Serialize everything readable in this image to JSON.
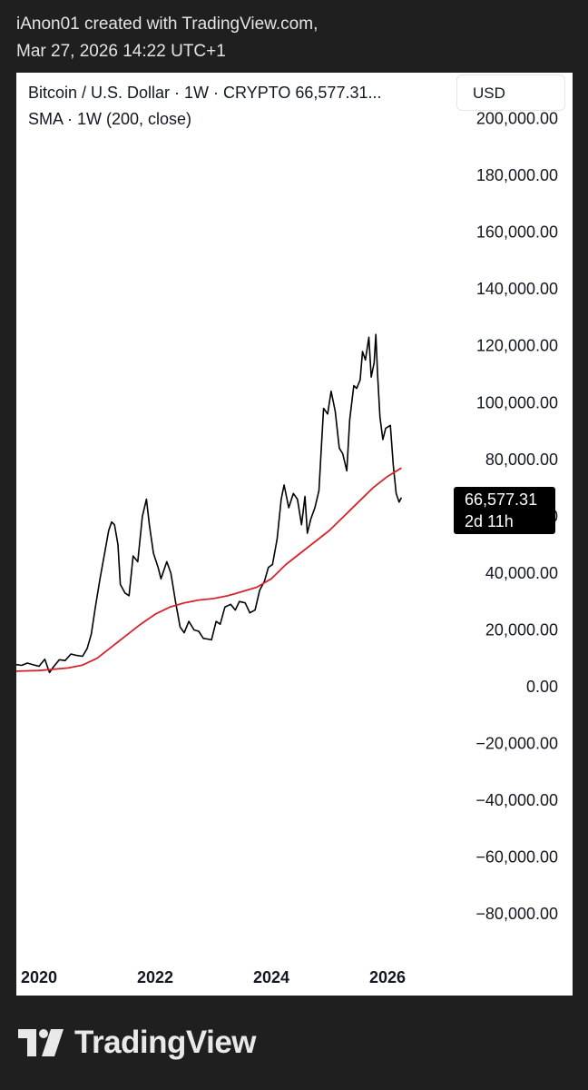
{
  "attribution": {
    "line1": "iAnon01 created with TradingView.com,",
    "line2": "Mar 27, 2026 14:22 UTC+1"
  },
  "legend": {
    "symbol_line": "Bitcoin / U.S. Dollar · 1W · CRYPTO  66,577.31...",
    "indicator_line": "SMA · 1W (200, close)"
  },
  "currency_button": "USD",
  "last_price": {
    "value": "66,577.31",
    "countdown": "2d 11h"
  },
  "footer": {
    "brand": "TradingView"
  },
  "colors": {
    "price_line": "#000000",
    "sma_line": "#d7232b",
    "background": "#1f1f1f"
  },
  "chart_data": {
    "type": "line",
    "title": "Bitcoin / U.S. Dollar · 1W · CRYPTO",
    "xlabel": "",
    "ylabel": "",
    "ylim": [
      -80000,
      200000
    ],
    "y_ticks": [
      "200,000.00",
      "180,000.00",
      "160,000.00",
      "140,000.00",
      "120,000.00",
      "100,000.00",
      "80,000.00",
      "60,000.00",
      "40,000.00",
      "20,000.00",
      "0.00",
      "−20,000.00",
      "−40,000.00",
      "−60,000.00",
      "−80,000.00"
    ],
    "y_tick_values": [
      200000,
      180000,
      160000,
      140000,
      120000,
      100000,
      80000,
      60000,
      40000,
      20000,
      0,
      -20000,
      -40000,
      -60000,
      -80000
    ],
    "x_ticks": [
      "2020",
      "2022",
      "2024",
      "2026"
    ],
    "x_tick_values": [
      2020.0,
      2022.0,
      2024.0,
      2026.0
    ],
    "series": [
      {
        "name": "Bitcoin / U.S. Dollar",
        "points": [
          [
            2019.0,
            8000
          ],
          [
            2019.1,
            8600
          ],
          [
            2019.2,
            7600
          ],
          [
            2019.3,
            7900
          ],
          [
            2019.4,
            7300
          ],
          [
            2019.5,
            8400
          ],
          [
            2019.6,
            7800
          ],
          [
            2019.7,
            7500
          ],
          [
            2019.8,
            8300
          ],
          [
            2019.9,
            7700
          ],
          [
            2020.0,
            7200
          ],
          [
            2020.1,
            9700
          ],
          [
            2020.18,
            5000
          ],
          [
            2020.25,
            7000
          ],
          [
            2020.35,
            9500
          ],
          [
            2020.45,
            9200
          ],
          [
            2020.55,
            11500
          ],
          [
            2020.65,
            11000
          ],
          [
            2020.75,
            10700
          ],
          [
            2020.83,
            13500
          ],
          [
            2020.9,
            18500
          ],
          [
            2020.97,
            28000
          ],
          [
            2021.05,
            38000
          ],
          [
            2021.13,
            47000
          ],
          [
            2021.2,
            55000
          ],
          [
            2021.25,
            58000
          ],
          [
            2021.3,
            57000
          ],
          [
            2021.36,
            50000
          ],
          [
            2021.4,
            36000
          ],
          [
            2021.48,
            33000
          ],
          [
            2021.55,
            32000
          ],
          [
            2021.62,
            46000
          ],
          [
            2021.7,
            44000
          ],
          [
            2021.78,
            60000
          ],
          [
            2021.85,
            66000
          ],
          [
            2021.9,
            57000
          ],
          [
            2021.97,
            47000
          ],
          [
            2022.05,
            42000
          ],
          [
            2022.1,
            38000
          ],
          [
            2022.2,
            44000
          ],
          [
            2022.27,
            40000
          ],
          [
            2022.35,
            30000
          ],
          [
            2022.43,
            21000
          ],
          [
            2022.5,
            19000
          ],
          [
            2022.58,
            23000
          ],
          [
            2022.67,
            20000
          ],
          [
            2022.75,
            19500
          ],
          [
            2022.83,
            17000
          ],
          [
            2022.9,
            16800
          ],
          [
            2022.97,
            16500
          ],
          [
            2023.05,
            23000
          ],
          [
            2023.12,
            22000
          ],
          [
            2023.2,
            28000
          ],
          [
            2023.3,
            29000
          ],
          [
            2023.38,
            27000
          ],
          [
            2023.45,
            30000
          ],
          [
            2023.55,
            29500
          ],
          [
            2023.63,
            26000
          ],
          [
            2023.72,
            27000
          ],
          [
            2023.8,
            34000
          ],
          [
            2023.88,
            37000
          ],
          [
            2023.95,
            42000
          ],
          [
            2024.02,
            43000
          ],
          [
            2024.1,
            52000
          ],
          [
            2024.17,
            66000
          ],
          [
            2024.22,
            71000
          ],
          [
            2024.3,
            63000
          ],
          [
            2024.38,
            68000
          ],
          [
            2024.45,
            66000
          ],
          [
            2024.52,
            57000
          ],
          [
            2024.58,
            67000
          ],
          [
            2024.62,
            54000
          ],
          [
            2024.68,
            59000
          ],
          [
            2024.75,
            63000
          ],
          [
            2024.82,
            69000
          ],
          [
            2024.85,
            80000
          ],
          [
            2024.9,
            98000
          ],
          [
            2024.97,
            96000
          ],
          [
            2025.03,
            104000
          ],
          [
            2025.1,
            97000
          ],
          [
            2025.17,
            84000
          ],
          [
            2025.23,
            82000
          ],
          [
            2025.3,
            76000
          ],
          [
            2025.35,
            94000
          ],
          [
            2025.42,
            106000
          ],
          [
            2025.47,
            105000
          ],
          [
            2025.53,
            108000
          ],
          [
            2025.57,
            118000
          ],
          [
            2025.62,
            115000
          ],
          [
            2025.68,
            123000
          ],
          [
            2025.72,
            109000
          ],
          [
            2025.77,
            114000
          ],
          [
            2025.8,
            124000
          ],
          [
            2025.83,
            110000
          ],
          [
            2025.87,
            95000
          ],
          [
            2025.92,
            87000
          ],
          [
            2025.97,
            91000
          ],
          [
            2026.05,
            92000
          ],
          [
            2026.1,
            78000
          ],
          [
            2026.15,
            68000
          ],
          [
            2026.2,
            65000
          ],
          [
            2026.24,
            66577
          ]
        ]
      },
      {
        "name": "SMA · 1W (200, close)",
        "points": [
          [
            2019.0,
            4900
          ],
          [
            2019.5,
            5400
          ],
          [
            2020.0,
            5700
          ],
          [
            2020.5,
            6600
          ],
          [
            2020.75,
            7600
          ],
          [
            2021.0,
            10000
          ],
          [
            2021.25,
            14000
          ],
          [
            2021.5,
            18000
          ],
          [
            2021.75,
            22000
          ],
          [
            2022.0,
            25500
          ],
          [
            2022.25,
            28000
          ],
          [
            2022.5,
            29500
          ],
          [
            2022.75,
            30500
          ],
          [
            2023.0,
            31000
          ],
          [
            2023.25,
            32000
          ],
          [
            2023.5,
            33500
          ],
          [
            2023.75,
            35000
          ],
          [
            2024.0,
            38000
          ],
          [
            2024.25,
            43000
          ],
          [
            2024.5,
            47000
          ],
          [
            2024.75,
            51000
          ],
          [
            2025.0,
            55000
          ],
          [
            2025.25,
            60000
          ],
          [
            2025.5,
            65000
          ],
          [
            2025.75,
            70000
          ],
          [
            2026.0,
            74000
          ],
          [
            2026.24,
            77000
          ]
        ]
      }
    ]
  }
}
